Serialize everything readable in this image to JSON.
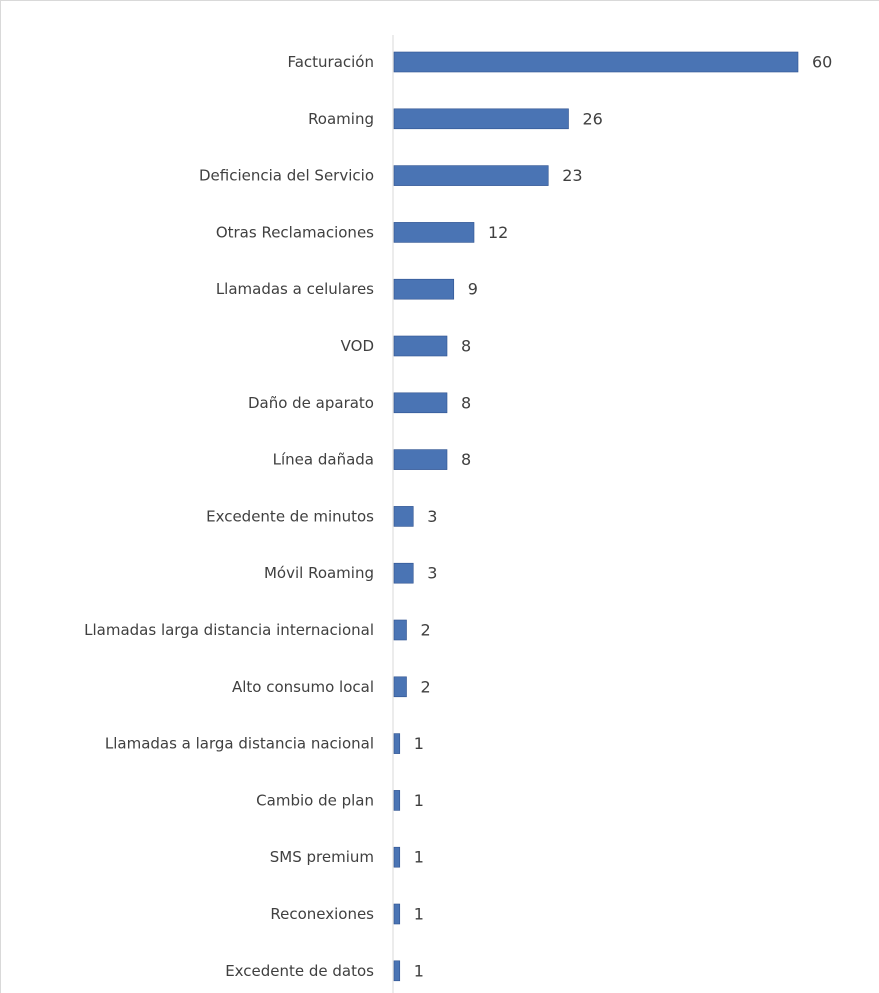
{
  "chart_data": {
    "type": "bar",
    "orientation": "horizontal",
    "title": "",
    "xlabel": "",
    "ylabel": "",
    "categories": [
      "Facturación",
      "Roaming",
      "Deficiencia del Servicio",
      "Otras Reclamaciones",
      "Llamadas a celulares",
      "VOD",
      "Daño de aparato",
      "Línea dañada",
      "Excedente de minutos",
      "Móvil Roaming",
      "Llamadas larga distancia internacional",
      "Alto consumo local",
      "Llamadas a larga distancia nacional",
      "Cambio de plan",
      "SMS premium",
      "Reconexiones",
      "Excedente de datos"
    ],
    "values": [
      60,
      26,
      23,
      12,
      9,
      8,
      8,
      8,
      3,
      3,
      2,
      2,
      1,
      1,
      1,
      1,
      1
    ],
    "xlim": [
      0,
      60
    ],
    "grid": false,
    "legend": "none",
    "data_labels": true,
    "colors": {
      "bar_fill": "#4a74b4",
      "bar_stroke": "#2f528f",
      "axis": "#d9d9d9",
      "text": "#404040"
    }
  }
}
